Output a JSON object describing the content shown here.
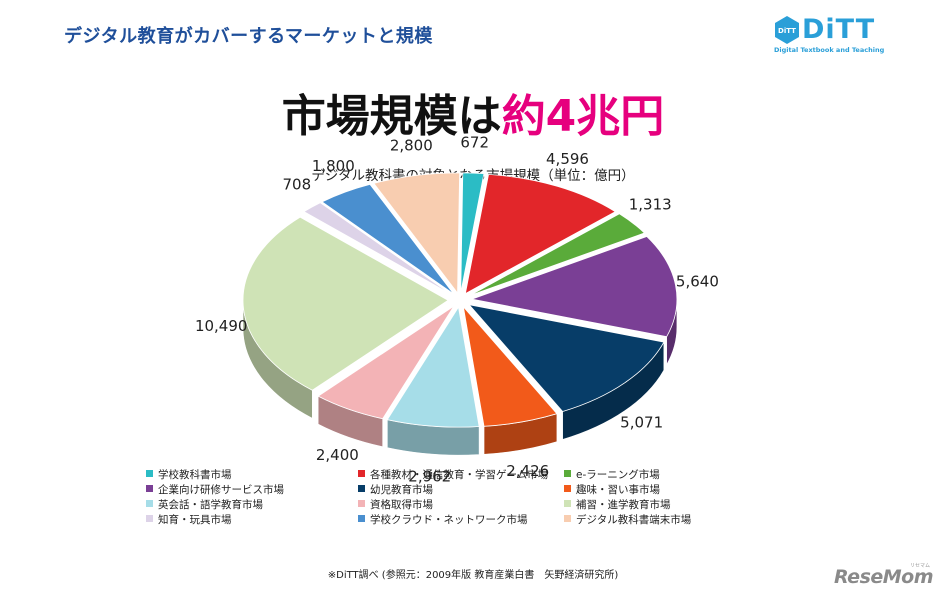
{
  "header": {
    "title": "デジタル教育がカバーするマーケットと規模",
    "logo_text": "DiTT",
    "logo_subtext": "Digital Textbook and Teaching",
    "logo_badge": "DiTT"
  },
  "headline": {
    "main": "市場規模は",
    "accent": "約4兆円"
  },
  "colors": {
    "title_blue": "#1f4f9a",
    "accent_pink": "#e6007e",
    "logo_blue": "#2a9fd8"
  },
  "chart_data": {
    "type": "pie",
    "title": "デジタル教科書の対象となる市場規模（単位：億円）",
    "unit": "億円",
    "slices": [
      {
        "name": "学校教科書市場",
        "value": 672,
        "label": "672",
        "color": "#2bbcc5"
      },
      {
        "name": "各種教材・通信教育・学習ゲーム市場",
        "value": 4596,
        "label": "4,596",
        "color": "#e2262a"
      },
      {
        "name": "e-ラーニング市場",
        "value": 1313,
        "label": "1,313",
        "color": "#5aab3a"
      },
      {
        "name": "企業向け研修サービス市場",
        "value": 5640,
        "label": "5,640",
        "color": "#7a3f95"
      },
      {
        "name": "幼児教育市場",
        "value": 5071,
        "label": "5,071",
        "color": "#073d68"
      },
      {
        "name": "趣味・習い事市場",
        "value": 2426,
        "label": "2,426",
        "color": "#f25a1a"
      },
      {
        "name": "英会話・語学教育市場",
        "value": 2962,
        "label": "2,962",
        "color": "#a6dde8"
      },
      {
        "name": "資格取得市場",
        "value": 2400,
        "label": "2,400",
        "color": "#f3b3b6"
      },
      {
        "name": "補習・進学教育市場",
        "value": 10490,
        "label": "10,490",
        "color": "#cfe3b6"
      },
      {
        "name": "知育・玩具市場",
        "value": 708,
        "label": "708",
        "color": "#ddd3e8"
      },
      {
        "name": "学校クラウド・ネットワーク市場",
        "value": 1800,
        "label": "1,800",
        "color": "#4a8fcf"
      },
      {
        "name": "デジタル教科書端末市場",
        "value": 2800,
        "label": "2,800",
        "color": "#f8cdb0"
      }
    ],
    "legend_placement": "bottom",
    "style": "3d-exploded"
  },
  "footnote": "※DiTT調べ (参照元：2009年版 教育産業白書　矢野経済研究所)",
  "watermark": {
    "text": "ReseMom",
    "sub": "リセマム"
  }
}
